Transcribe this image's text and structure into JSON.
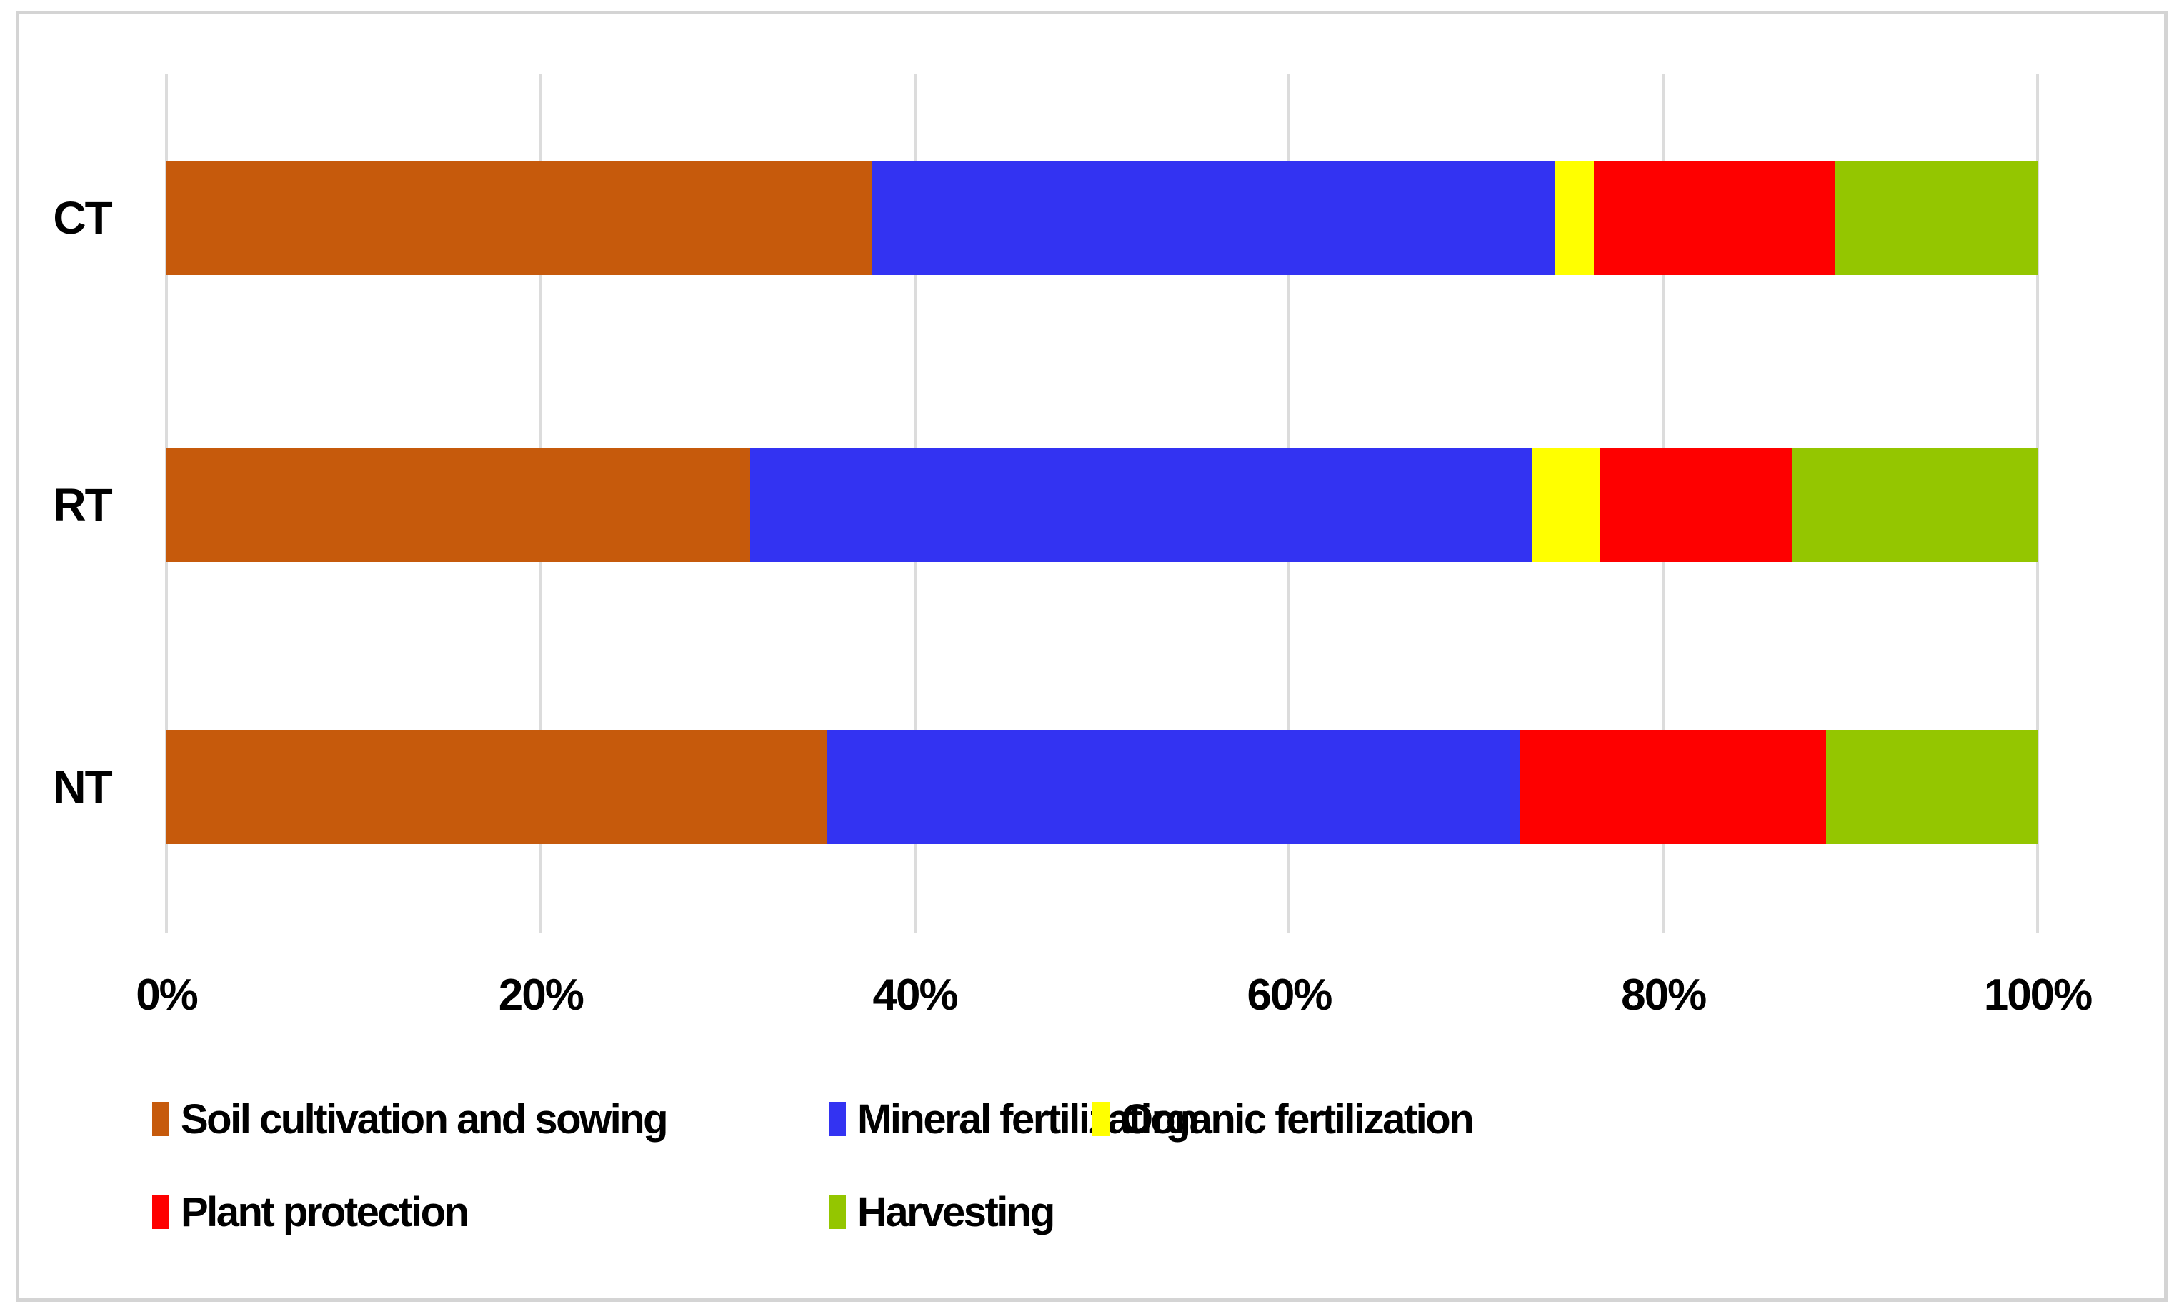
{
  "chart_data": {
    "type": "bar",
    "orientation": "horizontal",
    "stacked": true,
    "title": "",
    "xlabel": "",
    "ylabel": "",
    "categories": [
      "CT",
      "RT",
      "NT"
    ],
    "series": [
      {
        "name": "Soil cultivation and sowing",
        "color": "#C65A0C",
        "values": [
          37.7,
          31.2,
          35.3
        ]
      },
      {
        "name": "Mineral fertilization",
        "color": "#3333F2",
        "values": [
          36.5,
          41.8,
          37.0
        ]
      },
      {
        "name": "Organic fertilization",
        "color": "#FFFF00",
        "values": [
          2.1,
          3.6,
          0.0
        ]
      },
      {
        "name": "Plant protection",
        "color": "#FE0000",
        "values": [
          12.9,
          10.3,
          16.4
        ]
      },
      {
        "name": "Harvesting",
        "color": "#94C600",
        "values": [
          10.8,
          13.1,
          11.3
        ]
      }
    ],
    "xlim": [
      0,
      100
    ],
    "x_ticks": [
      "0%",
      "20%",
      "40%",
      "60%",
      "80%",
      "100%"
    ],
    "grid": "vertical",
    "gridline_color": "#DCDCDC",
    "frame_color": "#D4D4D4",
    "legend_position": "bottom",
    "legend_rows": [
      [
        "Soil cultivation and sowing",
        "Mineral fertilization",
        "Organic fertilization"
      ],
      [
        "Plant protection",
        "Harvesting"
      ]
    ]
  }
}
